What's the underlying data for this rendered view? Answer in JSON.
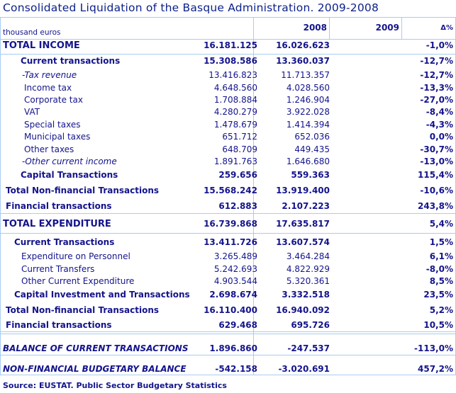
{
  "title": "Consolidated Liquidation of the Basque Administration. 2009-2008",
  "unit": "thousand euros",
  "columns": [
    "2008",
    "2009",
    "Δ%"
  ],
  "rows": [
    {
      "label": "TOTAL INCOME",
      "v2008": "16.181.125",
      "v2009": "16.026.623",
      "change": "-1,0%",
      "style": "top"
    },
    {
      "label": "Current transactions",
      "v2008": "15.308.586",
      "v2009": "13.360.037",
      "change": "-12,7%",
      "style": "sub-bold"
    },
    {
      "label": "-Tax revenue",
      "v2008": "13.416.823",
      "v2009": "11.713.357",
      "change": "-12,7%",
      "style": "italic"
    },
    {
      "label": "Income tax",
      "v2008": "4.648.560",
      "v2009": "4.028.560",
      "change": "-13,3%",
      "style": "item"
    },
    {
      "label": "Corporate tax",
      "v2008": "1.708.884",
      "v2009": "1.246.904",
      "change": "-27,0%",
      "style": "item"
    },
    {
      "label": "VAT",
      "v2008": "4.280.279",
      "v2009": "3.922.028",
      "change": "-8,4%",
      "style": "item"
    },
    {
      "label": "Special taxes",
      "v2008": "1.478.679",
      "v2009": "1.414.394",
      "change": "-4,3%",
      "style": "item"
    },
    {
      "label": "Municipal taxes",
      "v2008": "651.712",
      "v2009": "652.036",
      "change": "0,0%",
      "style": "item"
    },
    {
      "label": "Other taxes",
      "v2008": "648.709",
      "v2009": "449.435",
      "change": "-30,7%",
      "style": "item"
    },
    {
      "label": "-Other current income",
      "v2008": "1.891.763",
      "v2009": "1.646.680",
      "change": "-13,0%",
      "style": "italic"
    },
    {
      "label": "Capital Transactions",
      "v2008": "259.656",
      "v2009": "559.363",
      "change": "115,4%",
      "style": "sub-bold"
    },
    {
      "label": "Total Non-financial Transactions",
      "v2008": "15.568.242",
      "v2009": "13.919.400",
      "change": "-10,6%",
      "style": "total"
    },
    {
      "label": "Financial transactions",
      "v2008": "612.883",
      "v2009": "2.107.223",
      "change": "243,8%",
      "style": "total"
    },
    {
      "label": "TOTAL EXPENDITURE",
      "v2008": "16.739.868",
      "v2009": "17.635.817",
      "change": "5,4%",
      "style": "top"
    },
    {
      "label": "Current Transactions",
      "v2008": "13.411.726",
      "v2009": "13.607.574",
      "change": "1,5%",
      "style": "sub-bold2"
    },
    {
      "label": "Expenditure on Personnel",
      "v2008": "3.265.489",
      "v2009": "3.464.284",
      "change": "6,1%",
      "style": "item2"
    },
    {
      "label": "Current Transfers",
      "v2008": "5.242.693",
      "v2009": "4.822.929",
      "change": "-8,0%",
      "style": "item2"
    },
    {
      "label": "Other Current Expenditure",
      "v2008": "4.903.544",
      "v2009": "5.320.361",
      "change": "8,5%",
      "style": "item2"
    },
    {
      "label": "Capital Investment and Transactions",
      "v2008": "2.698.674",
      "v2009": "3.332.518",
      "change": "23,5%",
      "style": "sub-bold2"
    },
    {
      "label": "Total Non-financial Transactions",
      "v2008": "16.110.400",
      "v2009": "16.940.092",
      "change": "5,2%",
      "style": "total"
    },
    {
      "label": "Financial transactions",
      "v2008": "629.468",
      "v2009": "695.726",
      "change": "10,5%",
      "style": "total"
    },
    {
      "label": "BALANCE OF CURRENT TRANSACTIONS",
      "v2008": "1.896.860",
      "v2009": "-247.537",
      "change": "-113,0%",
      "style": "balance"
    },
    {
      "label": "NON-FINANCIAL BUDGETARY BALANCE",
      "v2008": "-542.158",
      "v2009": "-3.020.691",
      "change": "457,2%",
      "style": "balance"
    }
  ],
  "source": "Source: EUSTAT. Public Sector Budgetary Statistics",
  "colors": {
    "text": "#14148c",
    "border": "#a8ccf2"
  }
}
